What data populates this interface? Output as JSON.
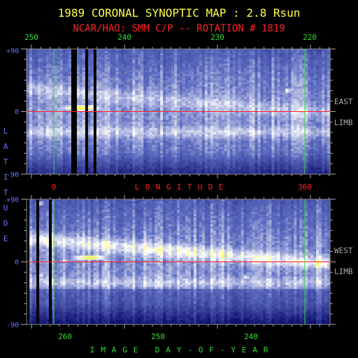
{
  "chart_data": {
    "type": "heatmap",
    "title": "1989 CORONAL SYNOPTIC MAP : 2.8 Rsun",
    "subtitle": "NCAR/HAO: SMM C/P -- ROTATION # 1819",
    "ylabel": "LATITUDE",
    "longitude_label": "LONGITUDE",
    "xlabel": "IMAGE DAY-OF-YEAR",
    "colors": {
      "title": "#ffff44",
      "subtitle": "#ff2222",
      "top_ticks": "#33dd33",
      "bottom_ticks": "#33dd33",
      "longitude": "#ff2222",
      "lat_ticks": "#6677ff",
      "side_labels": "#aaaaaa",
      "equator_line": "#ff2020",
      "meridian_line": "#30e030",
      "map_low": "#101070",
      "map_mid": "#5d6cc0",
      "map_high": "#ffffff",
      "map_peak": "#ffff30"
    },
    "panels": [
      {
        "side_label_1": "EAST",
        "side_label_2": "LIMB",
        "lat_tick_labels": [
          "+90",
          "0",
          "-90"
        ],
        "lat_range": [
          -90,
          90
        ],
        "x_axis_labels": [
          "250",
          "240",
          "230",
          "220"
        ],
        "x_axis_label_values": [
          250,
          240,
          230,
          220
        ],
        "longitude_tick_labels": [
          "0",
          "360"
        ],
        "longitude_range": [
          0,
          360
        ],
        "gaps_longitude": [
          [
            25,
            33
          ],
          [
            45,
            49
          ],
          [
            57,
            61
          ]
        ],
        "bright_features": [
          {
            "lon": 40,
            "lat": 5,
            "intensity": 1.0,
            "lon_width": 45,
            "lat_width": 7
          },
          {
            "lon": 335,
            "lat": 30,
            "intensity": 0.85,
            "lon_width": 8,
            "lat_width": 6
          },
          {
            "lon": 352,
            "lat": -28,
            "intensity": 0.8,
            "lon_width": 4,
            "lat_width": 6
          }
        ]
      },
      {
        "side_label_1": "WEST",
        "side_label_2": "LIMB",
        "lat_tick_labels": [
          "+90",
          "0",
          "-90"
        ],
        "lat_range": [
          -90,
          90
        ],
        "x_axis_labels": [
          "260",
          "250",
          "240"
        ],
        "x_axis_label_values": [
          260,
          250,
          240
        ],
        "longitude_tick_labels": [
          "0",
          "360"
        ],
        "longitude_range": [
          0,
          360
        ],
        "gaps_longitude": [
          [
            -40,
            -35
          ],
          [
            -25,
            -21
          ],
          [
            -7,
            -3
          ]
        ],
        "bright_features": [
          {
            "lon": 52,
            "lat": 6,
            "intensity": 1.0,
            "lon_width": 40,
            "lat_width": 6
          },
          {
            "lon": 15,
            "lat": 2,
            "intensity": 0.85,
            "lon_width": 8,
            "lat_width": 5
          },
          {
            "lon": 276,
            "lat": -22,
            "intensity": 0.85,
            "lon_width": 6,
            "lat_width": 6
          },
          {
            "lon": -19,
            "lat": -20,
            "intensity": 0.85,
            "lon_width": 6,
            "lat_width": 6
          },
          {
            "lon": -20,
            "lat": 84,
            "intensity": 0.8,
            "lon_width": 8,
            "lat_width": 5
          }
        ]
      }
    ]
  }
}
